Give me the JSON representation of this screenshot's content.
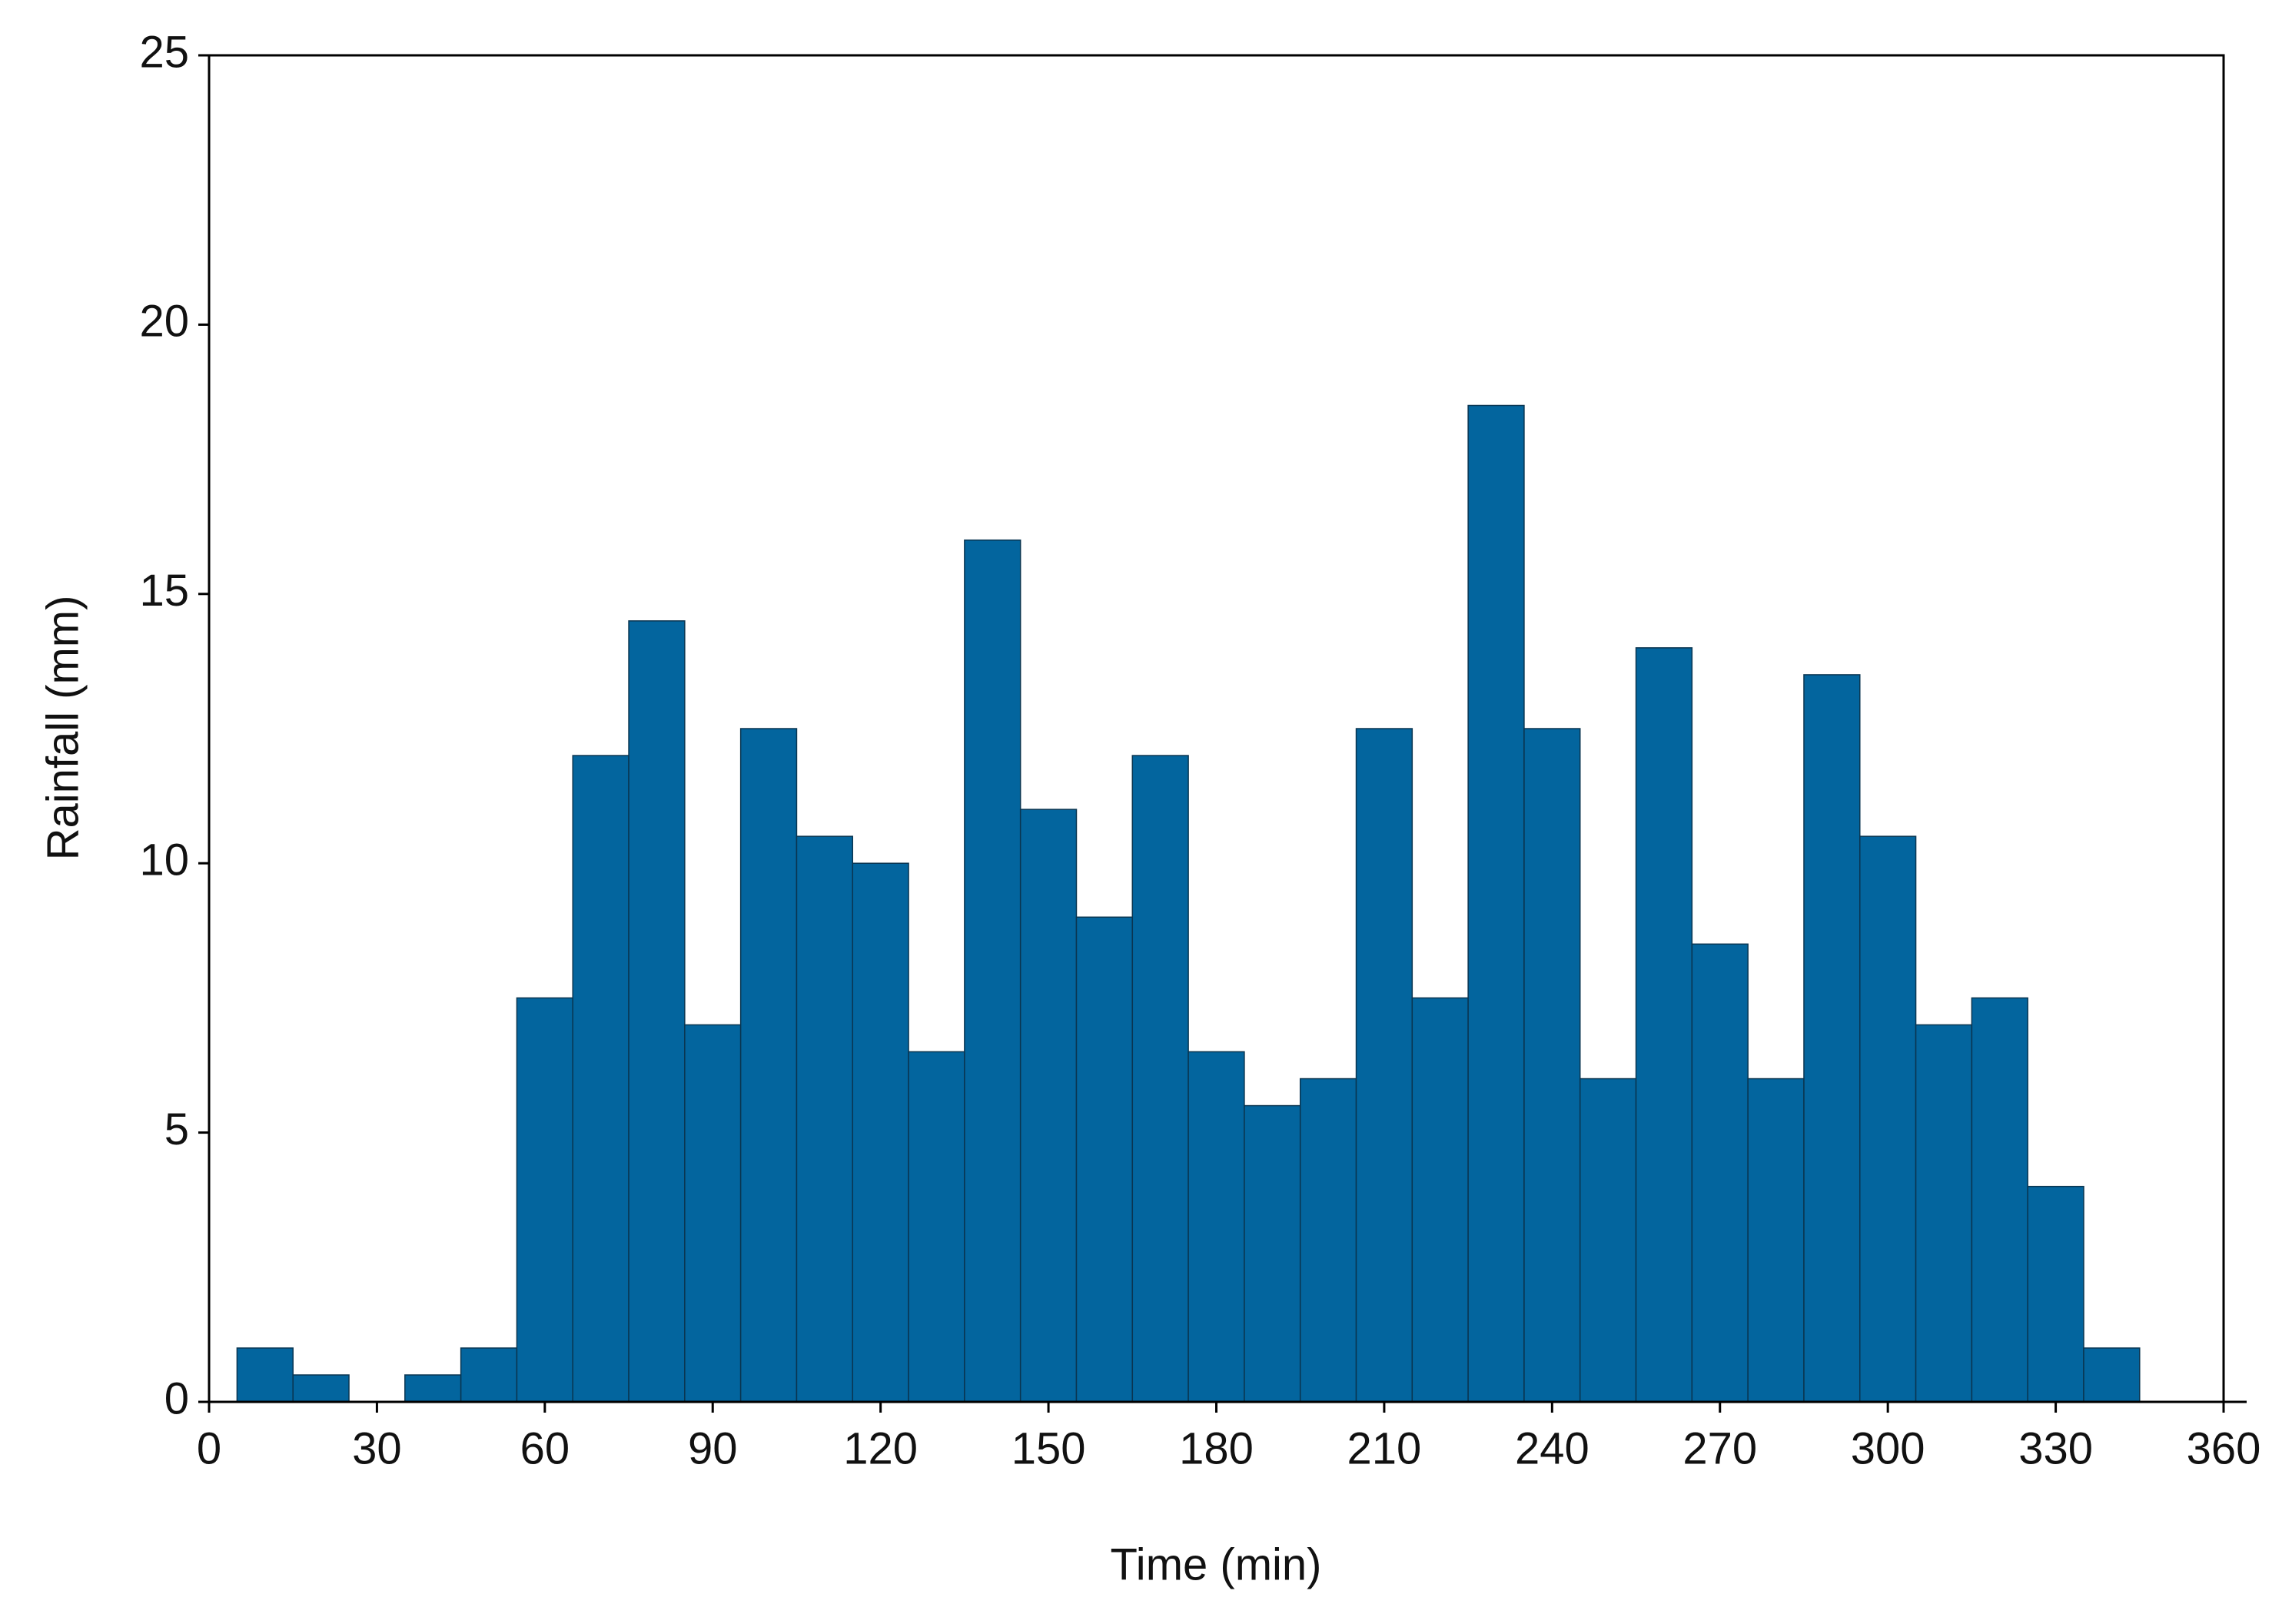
{
  "chart_data": {
    "type": "histogram",
    "xlabel": "Time (min)",
    "ylabel": "Rainfall (mm)",
    "bins": [
      5,
      15,
      25,
      35,
      45,
      55,
      65,
      75,
      85,
      95,
      105,
      115,
      125,
      135,
      145,
      155,
      165,
      175,
      185,
      195,
      205,
      215,
      225,
      235,
      245,
      255,
      265,
      275,
      285,
      295,
      305,
      315,
      325,
      335,
      345
    ],
    "values": [
      1,
      0.5,
      0,
      0.5,
      1,
      7.5,
      12,
      14.5,
      7,
      12.5,
      10.5,
      10,
      6.5,
      16,
      11,
      9,
      12,
      6.5,
      5.5,
      6,
      12.5,
      7.5,
      18.5,
      12.5,
      6,
      14,
      8.5,
      6,
      13.5,
      10.5,
      7,
      7.5,
      4,
      1
    ],
    "color": "#03659e",
    "xlim": [
      0,
      360
    ],
    "xticks": [
      0,
      30,
      60,
      90,
      120,
      150,
      180,
      210,
      240,
      270,
      300,
      330,
      360
    ],
    "ylim": [
      0,
      25
    ],
    "yticks": [
      0,
      5,
      10,
      15,
      20,
      25
    ],
    "grid": false
  }
}
